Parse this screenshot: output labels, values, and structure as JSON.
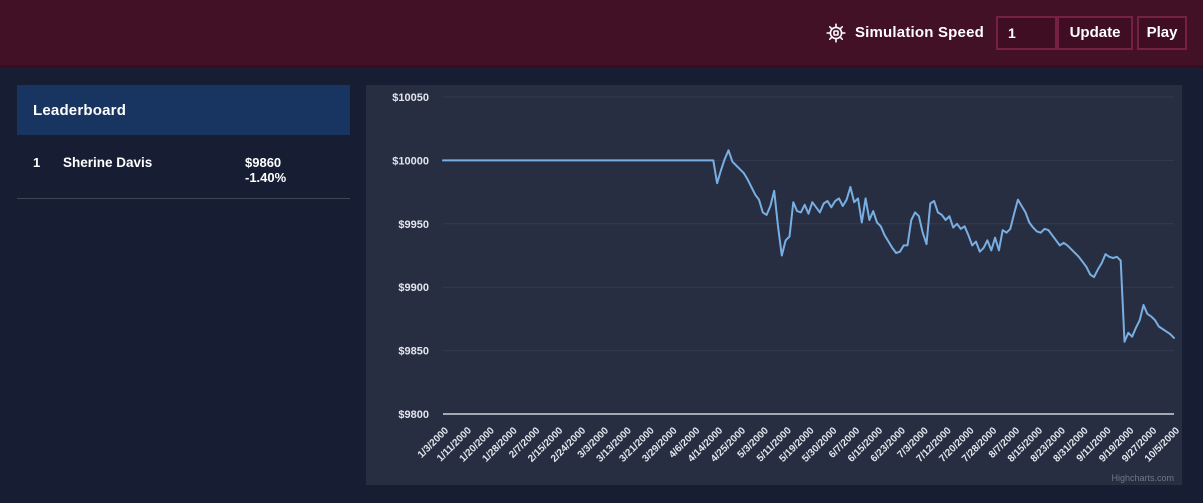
{
  "header": {
    "simulation_speed_label": "Simulation Speed",
    "speed_value": "1",
    "update_label": "Update",
    "play_label": "Play"
  },
  "leaderboard": {
    "title": "Leaderboard",
    "rows": [
      {
        "rank": "1",
        "name": "Sherine Davis",
        "value": "$9860",
        "change": "-1.40%"
      }
    ]
  },
  "chart_data": {
    "type": "line",
    "title": "",
    "xlabel": "",
    "ylabel": "",
    "ylim": [
      9800,
      10050
    ],
    "y_ticks": [
      9800,
      9850,
      9900,
      9950,
      10000,
      10050
    ],
    "y_tick_prefix": "$",
    "grid": true,
    "legend": false,
    "credits": "Highcharts.com",
    "line_color": "#79aee3",
    "x_tick_interval": 6,
    "x_tick_labels": [
      "1/3/2000",
      "1/11/2000",
      "1/20/2000",
      "1/28/2000",
      "2/7/2000",
      "2/15/2000",
      "2/24/2000",
      "3/3/2000",
      "3/13/2000",
      "3/21/2000",
      "3/29/2000",
      "4/6/2000",
      "4/14/2000",
      "4/25/2000",
      "5/3/2000",
      "5/11/2000",
      "5/19/2000",
      "5/30/2000",
      "6/7/2000",
      "6/15/2000",
      "6/23/2000",
      "7/3/2000",
      "7/12/2000",
      "7/20/2000",
      "7/28/2000",
      "8/7/2000",
      "8/15/2000",
      "8/23/2000",
      "8/31/2000",
      "9/11/2000",
      "9/19/2000",
      "9/27/2000",
      "10/5/2000"
    ],
    "values": [
      10000,
      10000,
      10000,
      10000,
      10000,
      10000,
      10000,
      10000,
      10000,
      10000,
      10000,
      10000,
      10000,
      10000,
      10000,
      10000,
      10000,
      10000,
      10000,
      10000,
      10000,
      10000,
      10000,
      10000,
      10000,
      10000,
      10000,
      10000,
      10000,
      10000,
      10000,
      10000,
      10000,
      10000,
      10000,
      10000,
      10000,
      10000,
      10000,
      10000,
      10000,
      10000,
      10000,
      10000,
      10000,
      10000,
      10000,
      10000,
      10000,
      10000,
      10000,
      10000,
      10000,
      10000,
      10000,
      10000,
      10000,
      10000,
      10000,
      10000,
      10000,
      10000,
      10000,
      10000,
      10000,
      10000,
      10000,
      10000,
      10000,
      10000,
      10000,
      10000,
      9982,
      9992,
      10001,
      10008,
      9999,
      9996,
      9993,
      9990,
      9985,
      9979,
      9973,
      9969,
      9959,
      9957,
      9964,
      9976,
      9948,
      9925,
      9937,
      9940,
      9967,
      9960,
      9959,
      9965,
      9958,
      9967,
      9963,
      9959,
      9966,
      9968,
      9963,
      9968,
      9970,
      9964,
      9969,
      9979,
      9967,
      9970,
      9951,
      9970,
      9953,
      9960,
      9951,
      9948,
      9941,
      9936,
      9931,
      9927,
      9928,
      9933,
      9933,
      9953,
      9959,
      9956,
      9943,
      9934,
      9966,
      9968,
      9959,
      9957,
      9953,
      9956,
      9947,
      9950,
      9946,
      9948,
      9941,
      9933,
      9936,
      9928,
      9931,
      9937,
      9929,
      9939,
      9929,
      9945,
      9943,
      9946,
      9958,
      9969,
      9964,
      9959,
      9951,
      9947,
      9944,
      9943,
      9946,
      9945,
      9941,
      9937,
      9933,
      9935,
      9933,
      9930,
      9927,
      9924,
      9920,
      9916,
      9910,
      9908,
      9914,
      9919,
      9926,
      9924,
      9923,
      9924,
      9921,
      9857,
      9864,
      9861,
      9868,
      9874,
      9886,
      9879,
      9877,
      9874,
      9869,
      9867,
      9865,
      9863,
      9860
    ]
  },
  "colors": {
    "header_bg": "#431126",
    "control_bg": "#3f0e23",
    "control_border": "#762144",
    "page_bg": "#171e34",
    "chart_panel_bg": "#272e41",
    "leaderboard_header_bg": "#183460",
    "divider": "#3d4557",
    "grid_line": "#333a52",
    "axis_line": "#ced2dc",
    "tick_text": "#e2e5ec",
    "credits_text": "#6e7787",
    "series_line": "#79aee3",
    "text": "#ffffff"
  }
}
